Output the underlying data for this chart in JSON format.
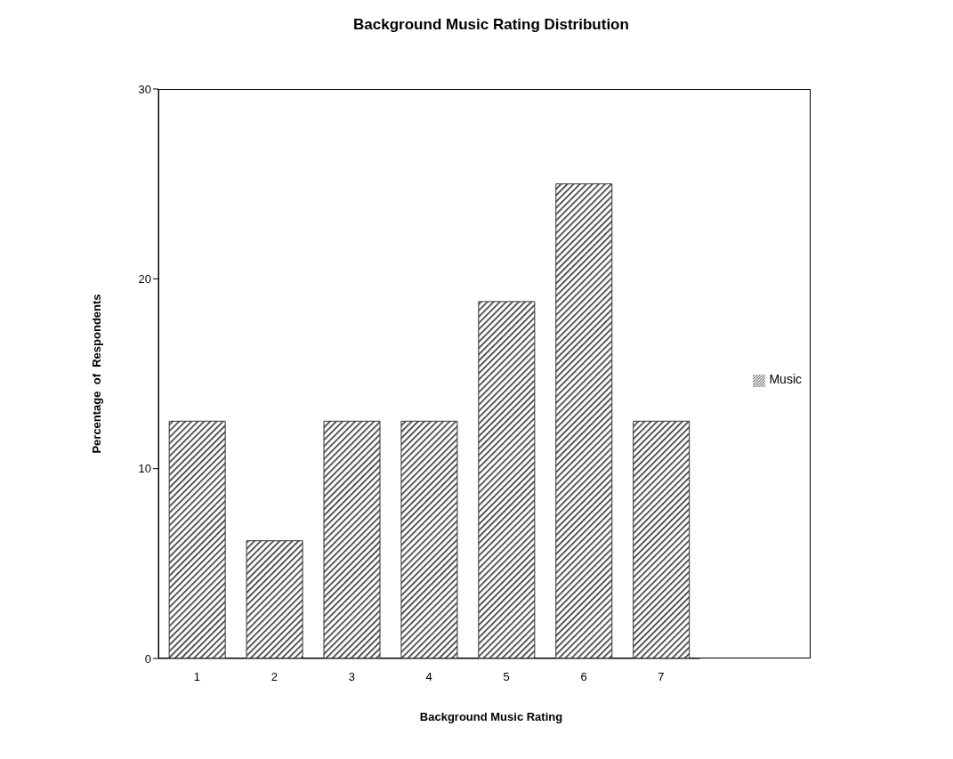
{
  "chart_data": {
    "type": "bar",
    "title": "Background Music Rating Distribution",
    "xlabel": "Background Music Rating",
    "ylabel": "Percentage  of  Respondents",
    "categories": [
      "1",
      "2",
      "3",
      "4",
      "5",
      "6",
      "7"
    ],
    "series": [
      {
        "name": "Music",
        "color": "#333333",
        "values": [
          12.5,
          6.2,
          12.5,
          12.5,
          18.8,
          25.0,
          12.5
        ]
      }
    ],
    "ylim": [
      0,
      30
    ],
    "yticks": [
      0,
      10,
      20,
      30
    ],
    "grid": false,
    "legend": "right"
  }
}
